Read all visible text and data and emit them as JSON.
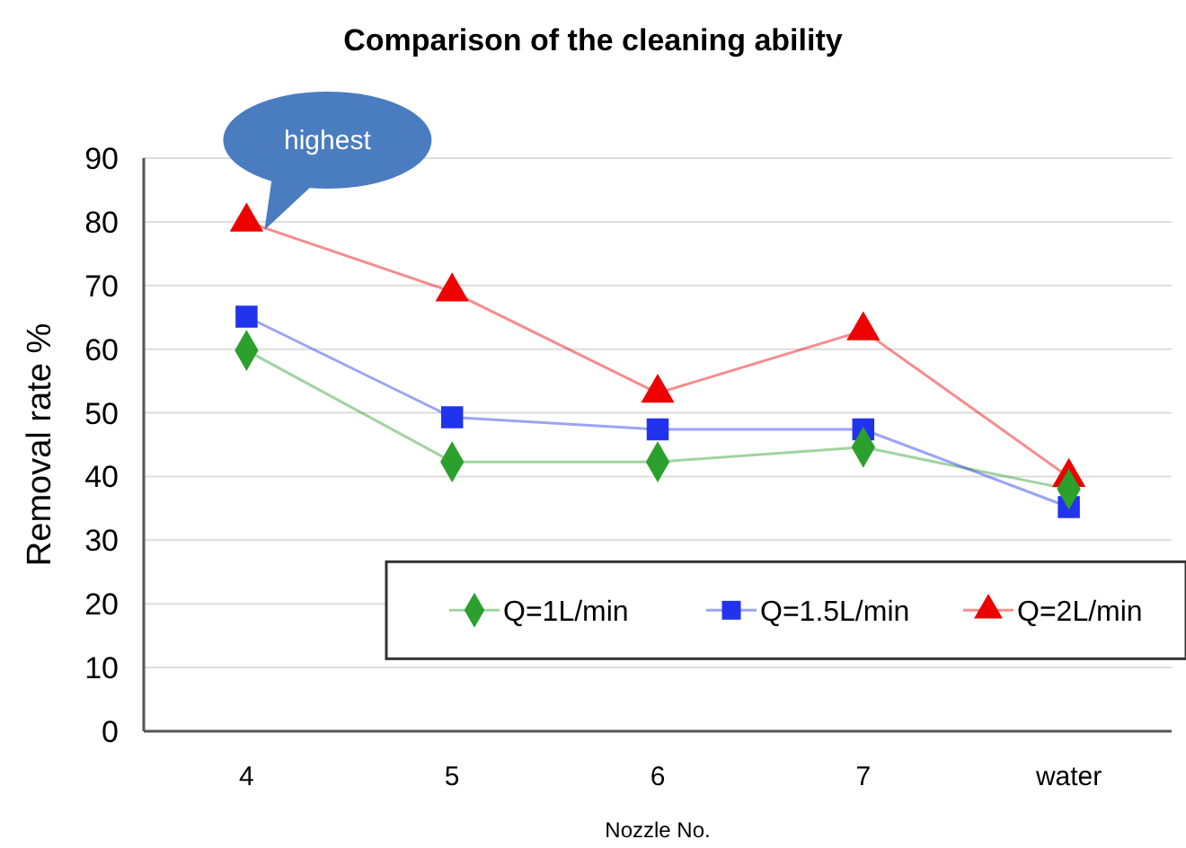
{
  "chart_data": {
    "type": "line",
    "title": "Comparison of the cleaning ability",
    "xlabel": "Nozzle No.",
    "ylabel": "Removal rate %",
    "categories": [
      "4",
      "5",
      "6",
      "7",
      "water"
    ],
    "series": [
      {
        "name": "Q=1L/min",
        "color": "#2ca02c",
        "marker": "diamond",
        "values": [
          59.8,
          42.3,
          42.3,
          44.6,
          38
        ]
      },
      {
        "name": "Q=1.5L/min",
        "color": "#2233ee",
        "marker": "square",
        "values": [
          65.1,
          49.3,
          47.4,
          47.4,
          35.2
        ]
      },
      {
        "name": "Q=2L/min",
        "color": "#ee0000",
        "marker": "triangle",
        "values": [
          80,
          69,
          53.1,
          62.9,
          39.9
        ]
      }
    ],
    "ylim": [
      0,
      90
    ],
    "yticks": [
      0,
      10,
      20,
      30,
      40,
      50,
      60,
      70,
      80,
      90
    ],
    "grid": "y",
    "legend": "bottom right",
    "annotations": [
      "highest"
    ]
  }
}
